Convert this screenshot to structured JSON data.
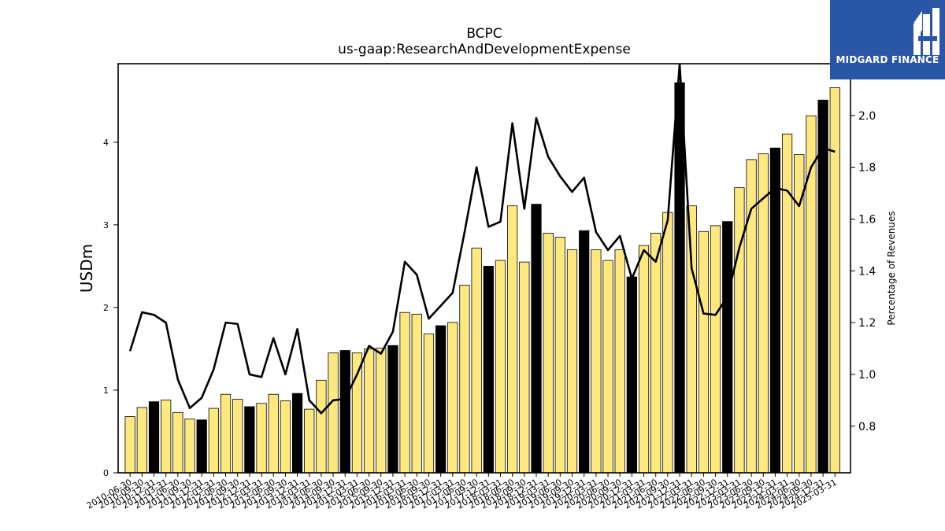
{
  "chart_data": {
    "type": "bar",
    "title": "BCPC",
    "subtitle": "us-gaap:ResearchAndDevelopmentExpense",
    "ylabel": "USDm",
    "y2label": "Percentage of Revenues",
    "ylim": [
      0,
      4.95
    ],
    "y2lim": [
      0.62,
      2.2
    ],
    "yticks": [
      0,
      1,
      2,
      3,
      4
    ],
    "y2ticks": [
      0.8,
      1.0,
      1.2,
      1.4,
      1.6,
      1.8,
      2.0
    ],
    "categories": [
      "2010-06-30",
      "2010-09-30",
      "2010-12-31",
      "2011-03-31",
      "2011-06-30",
      "2011-09-30",
      "2011-12-31",
      "2012-03-31",
      "2012-06-30",
      "2012-09-30",
      "2012-12-31",
      "2013-03-31",
      "2013-06-30",
      "2013-09-30",
      "2013-12-31",
      "2014-03-31",
      "2014-06-30",
      "2014-09-30",
      "2014-12-31",
      "2015-03-31",
      "2015-06-30",
      "2015-09-30",
      "2015-12-31",
      "2016-03-31",
      "2016-06-30",
      "2016-09-30",
      "2016-12-31",
      "2017-03-31",
      "2017-06-30",
      "2017-09-30",
      "2017-12-31",
      "2018-03-31",
      "2018-06-30",
      "2018-09-30",
      "2018-12-31",
      "2019-03-31",
      "2019-06-30",
      "2019-09-30",
      "2019-12-31",
      "2020-03-31",
      "2020-06-30",
      "2020-09-30",
      "2020-12-31",
      "2021-03-31",
      "2021-06-30",
      "2021-09-30",
      "2021-12-31",
      "2022-03-31",
      "2022-06-30",
      "2022-09-30",
      "2022-12-31",
      "2023-03-31",
      "2023-06-30",
      "2023-09-30",
      "2023-12-31",
      "2024-03-31",
      "2024-06-30",
      "2024-09-30",
      "2024-12-31",
      "2025-03-31"
    ],
    "series": [
      {
        "type": "bar",
        "axis": "left",
        "values": [
          0.68,
          0.79,
          0.86,
          0.88,
          0.73,
          0.65,
          0.64,
          0.78,
          0.95,
          0.89,
          0.8,
          0.84,
          0.95,
          0.87,
          0.96,
          0.77,
          1.12,
          1.45,
          1.48,
          1.45,
          1.5,
          1.51,
          1.54,
          1.94,
          1.92,
          1.68,
          1.78,
          1.82,
          2.27,
          2.72,
          2.5,
          2.57,
          3.23,
          2.55,
          3.25,
          2.9,
          2.85,
          2.7,
          2.93,
          2.7,
          2.57,
          2.7,
          2.37,
          2.75,
          2.9,
          3.15,
          4.72,
          3.23,
          2.92,
          2.99,
          3.04,
          3.45,
          3.79,
          3.86,
          3.93,
          4.1,
          3.85,
          4.32,
          4.51,
          4.66
        ],
        "colors": {
          "regular": "#ffe97f",
          "year_end": "#000000",
          "edge": "#000000"
        }
      },
      {
        "type": "line",
        "axis": "right",
        "color": "#000000",
        "values": [
          1.09,
          1.24,
          1.23,
          1.2,
          0.98,
          0.87,
          0.91,
          1.02,
          1.2,
          1.195,
          1.0,
          0.99,
          1.14,
          1.0,
          1.175,
          0.9,
          0.85,
          0.9,
          0.905,
          1.0,
          1.11,
          1.08,
          1.165,
          1.435,
          1.385,
          1.215,
          1.265,
          1.315,
          1.55,
          1.8,
          1.57,
          1.59,
          1.97,
          1.64,
          1.99,
          1.84,
          1.765,
          1.705,
          1.76,
          1.55,
          1.48,
          1.535,
          1.37,
          1.48,
          1.435,
          1.595,
          2.2,
          1.41,
          1.235,
          1.23,
          1.3,
          1.49,
          1.64,
          1.68,
          1.72,
          1.71,
          1.65,
          1.8,
          1.875,
          1.86
        ]
      }
    ],
    "grid": false,
    "legend": "none"
  },
  "logo": {
    "text": "MIDGARD FINANCE",
    "background": "#2a57a5"
  }
}
